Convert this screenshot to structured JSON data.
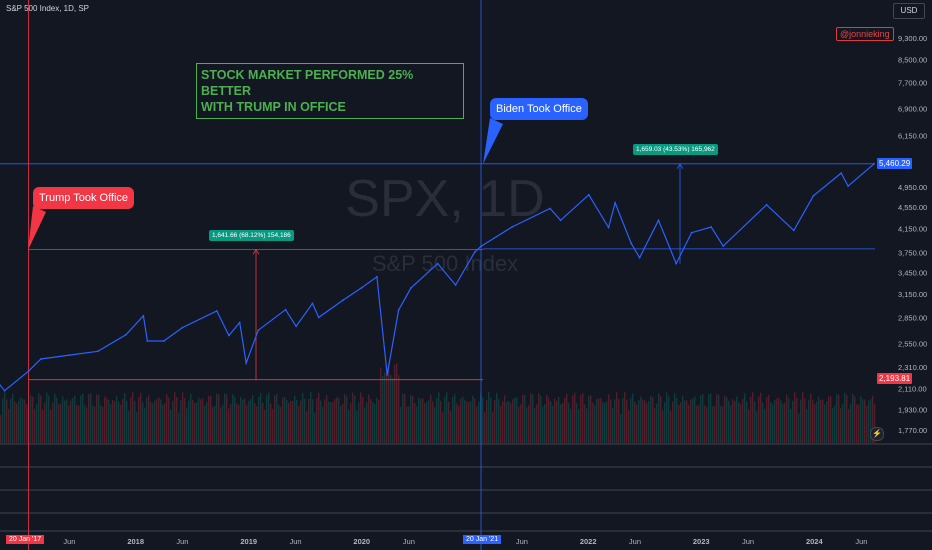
{
  "header": {
    "symbol": "S&P 500 Index, 1D, SP"
  },
  "currency": "USD",
  "watermark": {
    "symbol": "SPX, 1D",
    "name": "S&P 500 Index"
  },
  "author": "@jonnieking",
  "headline": [
    "STOCK MARKET PERFORMED 25% BETTER",
    "WITH TRUMP IN OFFICE"
  ],
  "callouts": {
    "trump": "Trump Took Office",
    "biden": "Biden Took Office"
  },
  "measures": {
    "trump_term": "1,641.66 (68.12%) 154,186",
    "biden_term": "1,659.03 (43.53%) 165,962"
  },
  "price_labels": {
    "current": "5,460.29",
    "trump_low": "2,193.81"
  },
  "x_tags": {
    "trump_start": "20 Jan '17",
    "biden_start": "20 Jan '21"
  },
  "icons": {
    "flash": "lightning-icon"
  },
  "colors": {
    "background": "#131722",
    "line": "#2962ff",
    "trump": "#f23645",
    "biden": "#2962ff",
    "headline": "#4caf50",
    "measure": "#089981"
  },
  "chart_data": {
    "type": "line",
    "title": "S&P 500 Index, 1D, SP",
    "y_scale": "log",
    "ylim": [
      1700,
      10500
    ],
    "xlim": [
      "2016-10-20",
      "2024-07-15"
    ],
    "y_ticks": [
      "9,300.00",
      "8,500.00",
      "7,700.00",
      "6,900.00",
      "6,150.00",
      "5,460.29",
      "4,950.00",
      "4,550.00",
      "4,150.00",
      "3,750.00",
      "3,450.00",
      "3,150.00",
      "2,850.00",
      "2,550.00",
      "2,310.00",
      "2,110.00",
      "1,930.00",
      "1,770.00"
    ],
    "x_ticks": [
      {
        "date": "2017-01-20",
        "label": "20 Jan '17"
      },
      {
        "date": "2017-06-01",
        "label": "Jun"
      },
      {
        "date": "2018-01-01",
        "label": "2018"
      },
      {
        "date": "2018-06-01",
        "label": "Jun"
      },
      {
        "date": "2019-01-01",
        "label": "2019"
      },
      {
        "date": "2019-06-01",
        "label": "Jun"
      },
      {
        "date": "2020-01-01",
        "label": "2020"
      },
      {
        "date": "2020-06-01",
        "label": "Jun"
      },
      {
        "date": "2021-01-20",
        "label": "20 Jan '21"
      },
      {
        "date": "2021-06-01",
        "label": "Jun"
      },
      {
        "date": "2022-01-01",
        "label": "2022"
      },
      {
        "date": "2022-06-01",
        "label": "Jun"
      },
      {
        "date": "2023-01-01",
        "label": "2023"
      },
      {
        "date": "2023-06-01",
        "label": "Jun"
      },
      {
        "date": "2024-01-01",
        "label": "2024"
      },
      {
        "date": "2024-06-01",
        "label": "Jun"
      }
    ],
    "series": [
      {
        "values": [
          [
            "2016-10-20",
            2140
          ],
          [
            "2016-11-04",
            2090
          ],
          [
            "2017-01-20",
            2270
          ],
          [
            "2017-03-01",
            2390
          ],
          [
            "2017-06-01",
            2430
          ],
          [
            "2017-09-01",
            2470
          ],
          [
            "2017-12-01",
            2650
          ],
          [
            "2018-01-26",
            2870
          ],
          [
            "2018-02-08",
            2580
          ],
          [
            "2018-04-02",
            2580
          ],
          [
            "2018-06-01",
            2730
          ],
          [
            "2018-09-20",
            2930
          ],
          [
            "2018-10-29",
            2640
          ],
          [
            "2018-12-03",
            2790
          ],
          [
            "2018-12-24",
            2350
          ],
          [
            "2019-02-01",
            2700
          ],
          [
            "2019-04-30",
            2945
          ],
          [
            "2019-06-03",
            2745
          ],
          [
            "2019-07-26",
            3025
          ],
          [
            "2019-08-15",
            2850
          ],
          [
            "2019-11-01",
            3065
          ],
          [
            "2019-12-31",
            3230
          ],
          [
            "2020-02-19",
            3385
          ],
          [
            "2020-03-23",
            2235
          ],
          [
            "2020-04-29",
            2940
          ],
          [
            "2020-06-08",
            3230
          ],
          [
            "2020-09-02",
            3580
          ],
          [
            "2020-10-30",
            3270
          ],
          [
            "2020-12-31",
            3760
          ],
          [
            "2021-01-20",
            3850
          ],
          [
            "2021-04-30",
            4180
          ],
          [
            "2021-08-31",
            4520
          ],
          [
            "2021-10-04",
            4300
          ],
          [
            "2022-01-03",
            4790
          ],
          [
            "2022-03-08",
            4170
          ],
          [
            "2022-03-29",
            4630
          ],
          [
            "2022-05-20",
            3900
          ],
          [
            "2022-06-16",
            3670
          ],
          [
            "2022-08-16",
            4300
          ],
          [
            "2022-10-12",
            3580
          ],
          [
            "2022-12-01",
            4080
          ],
          [
            "2023-02-02",
            4180
          ],
          [
            "2023-03-13",
            3855
          ],
          [
            "2023-07-31",
            4590
          ],
          [
            "2023-10-27",
            4120
          ],
          [
            "2023-12-29",
            4770
          ],
          [
            "2024-03-28",
            5250
          ],
          [
            "2024-04-19",
            4970
          ],
          [
            "2024-07-12",
            5460
          ]
        ]
      }
    ]
  }
}
